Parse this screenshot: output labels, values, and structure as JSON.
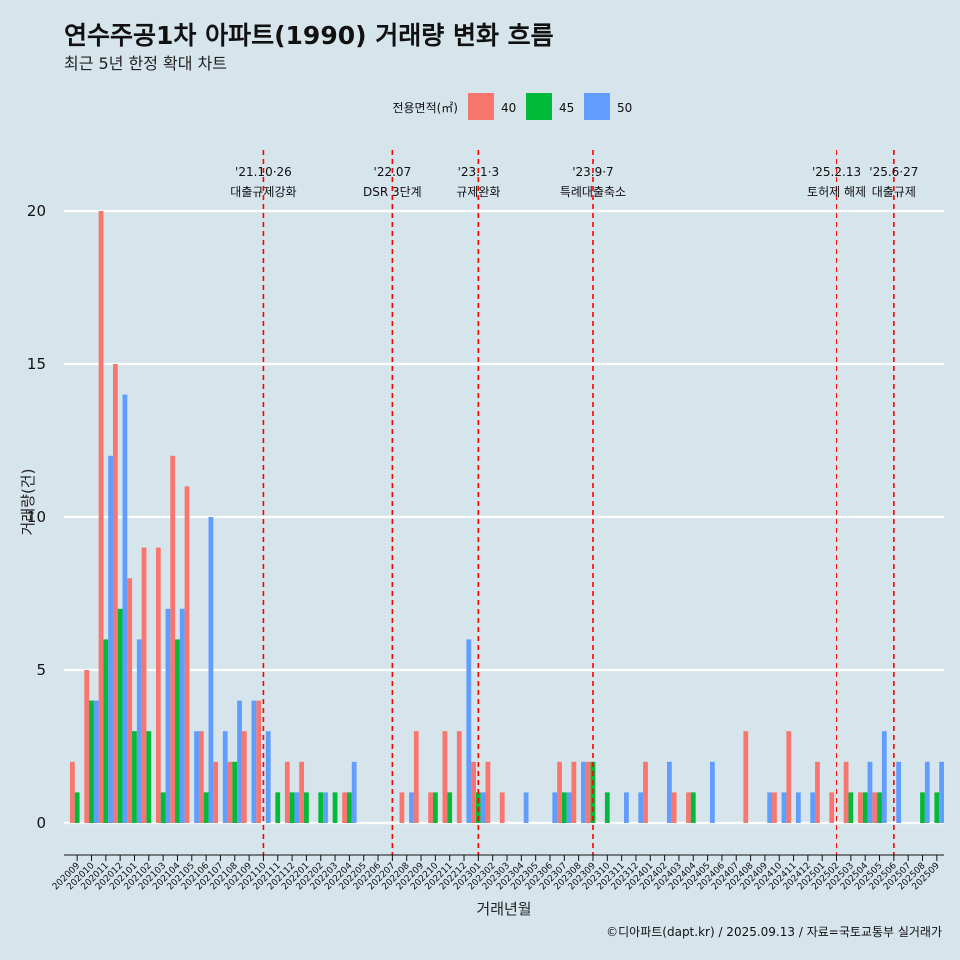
{
  "chart_data": {
    "type": "bar",
    "title": "연수주공1차 아파트(1990) 거래량 변화 흐름",
    "subtitle": "최근 5년 한정 확대 차트",
    "xlabel": "거래년월",
    "ylabel": "거래량(건)",
    "ylim": [
      0,
      21
    ],
    "yticks": [
      0,
      5,
      10,
      15,
      20
    ],
    "grid": true,
    "legend": {
      "title": "전용면적(㎡)",
      "position": "top"
    },
    "categories": [
      "202009",
      "202010",
      "202011",
      "202012",
      "202101",
      "202102",
      "202103",
      "202104",
      "202105",
      "202106",
      "202107",
      "202108",
      "202109",
      "202110",
      "202111",
      "202112",
      "202201",
      "202202",
      "202203",
      "202204",
      "202205",
      "202206",
      "202207",
      "202208",
      "202209",
      "202210",
      "202211",
      "202212",
      "202301",
      "202302",
      "202303",
      "202304",
      "202305",
      "202306",
      "202307",
      "202308",
      "202309",
      "202310",
      "202311",
      "202312",
      "202401",
      "202402",
      "202403",
      "202404",
      "202405",
      "202406",
      "202407",
      "202408",
      "202409",
      "202410",
      "202411",
      "202412",
      "202501",
      "202502",
      "202503",
      "202504",
      "202505",
      "202506",
      "202507",
      "202508",
      "202509"
    ],
    "series": [
      {
        "name": "40",
        "color": "#f8766d",
        "values": [
          2,
          5,
          20,
          15,
          8,
          9,
          9,
          12,
          11,
          3,
          2,
          2,
          3,
          4,
          0,
          2,
          2,
          0,
          0,
          1,
          0,
          0,
          0,
          1,
          3,
          1,
          3,
          3,
          2,
          2,
          1,
          0,
          0,
          0,
          2,
          2,
          2,
          0,
          0,
          0,
          2,
          0,
          1,
          1,
          0,
          0,
          0,
          3,
          0,
          1,
          3,
          0,
          2,
          1,
          2,
          1,
          1,
          0,
          0,
          0,
          0
        ]
      },
      {
        "name": "45",
        "color": "#00ba38",
        "values": [
          1,
          4,
          6,
          7,
          3,
          3,
          1,
          6,
          0,
          1,
          0,
          2,
          0,
          0,
          1,
          1,
          1,
          1,
          1,
          1,
          0,
          0,
          0,
          0,
          0,
          1,
          1,
          0,
          1,
          0,
          0,
          0,
          0,
          0,
          1,
          0,
          2,
          1,
          0,
          0,
          0,
          0,
          0,
          1,
          0,
          0,
          0,
          0,
          0,
          0,
          0,
          0,
          0,
          0,
          1,
          1,
          1,
          0,
          0,
          1,
          1
        ]
      },
      {
        "name": "50",
        "color": "#619cff",
        "values": [
          0,
          4,
          12,
          14,
          6,
          0,
          7,
          7,
          3,
          10,
          3,
          4,
          4,
          3,
          0,
          1,
          0,
          1,
          0,
          2,
          0,
          0,
          0,
          1,
          0,
          0,
          0,
          6,
          1,
          0,
          0,
          1,
          0,
          1,
          1,
          2,
          0,
          0,
          1,
          1,
          0,
          2,
          0,
          0,
          2,
          0,
          0,
          0,
          1,
          1,
          1,
          1,
          0,
          0,
          0,
          2,
          3,
          2,
          0,
          2,
          2
        ]
      }
    ],
    "events": [
      {
        "category": "202110",
        "line1": "'21.10·26",
        "line2": "대출규제강화",
        "style": "bold"
      },
      {
        "category": "202207",
        "line1": "'22.07",
        "line2": "DSR 3단계",
        "style": "bold"
      },
      {
        "category": "202301",
        "line1": "'23.1·3",
        "line2": "규제완화",
        "style": "bold"
      },
      {
        "category": "202309",
        "line1": "'23.9·7",
        "line2": "특례대출축소",
        "style": "bold"
      },
      {
        "category": "202502",
        "line1": "'25.2.13",
        "line2": "토허제 해제",
        "style": "thin"
      },
      {
        "category": "202506",
        "line1": "'25.6·27",
        "line2": "대출규제",
        "style": "bold"
      }
    ],
    "caption": "©디아파트(dapt.kr) / 2025.09.13 / 자료=국토교통부 실거래가"
  }
}
